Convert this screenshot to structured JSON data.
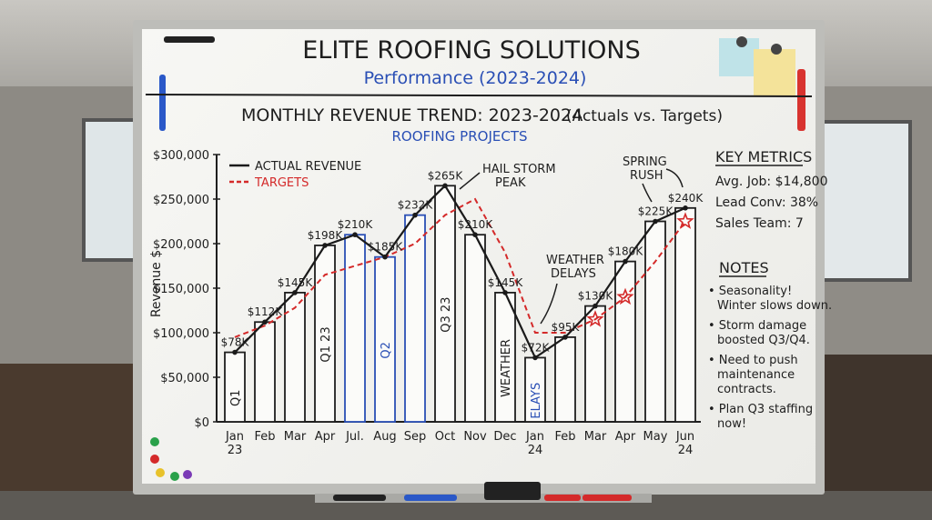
{
  "header": {
    "title": "ELITE ROOFING SOLUTIONS",
    "subtitle": "Performance (2023-2024)"
  },
  "chart_data": {
    "type": "bar",
    "title": "MONTHLY REVENUE TREND: 2023-2024",
    "title_note": "(Actuals vs. Targets)",
    "subtitle": "ROOFING PROJECTS",
    "ylabel": "Revenue $",
    "xlabel": "",
    "ylim": [
      0,
      300000
    ],
    "yticks": [
      "$0",
      "$50,000",
      "$100,000",
      "$150,000",
      "$200,000",
      "$250,000",
      "$300,000"
    ],
    "categories": [
      "Jan 23",
      "Feb",
      "Mar",
      "Apr",
      "Jul.",
      "Aug",
      "Sep",
      "Oct",
      "Nov",
      "Dec",
      "Jan 24",
      "Feb",
      "Mar",
      "Apr",
      "May",
      "Jun 24"
    ],
    "series": [
      {
        "name": "ACTUAL REVENUE",
        "values": [
          78000,
          112000,
          145000,
          198000,
          210000,
          185000,
          232000,
          265000,
          210000,
          145000,
          72000,
          95000,
          130000,
          180000,
          225000,
          240000
        ]
      },
      {
        "name": "TARGETS",
        "values": [
          95000,
          108000,
          128000,
          165000,
          175000,
          185000,
          200000,
          232000,
          250000,
          190000,
          100000,
          100000,
          115000,
          140000,
          180000,
          225000
        ]
      }
    ],
    "data_labels": [
      "$78K",
      "$112K",
      "$145K",
      "$198K",
      "$210K",
      "$185K",
      "$232K",
      "$265K",
      "$210K",
      "$145K",
      "$72K",
      "$95K",
      "$130K",
      "$180K",
      "$225K",
      "$240K"
    ],
    "bar_notes": [
      {
        "index": 0,
        "text": "Q1"
      },
      {
        "index": 3,
        "text": "Q1 23"
      },
      {
        "index": 5,
        "text": "Q2"
      },
      {
        "index": 7,
        "text": "Q3 23"
      },
      {
        "index": 9,
        "text": "WEATHER"
      },
      {
        "index": 10,
        "text": "ELAYS"
      }
    ],
    "highlighted_bars": [
      4,
      5,
      6
    ],
    "star_points": [
      12,
      13,
      15
    ],
    "annotations": [
      "HAIL STORM",
      "PEAK",
      "WEATHER",
      "DELAYS",
      "SPRING",
      "RUSH"
    ],
    "legend_position": "top-left",
    "grid": false,
    "colors": {
      "actual": "#1a1a1a",
      "target": "#d42a2a",
      "highlight": "#2a4fb5",
      "ink": "#1e1e1e"
    }
  },
  "key_metrics": {
    "title": "KEY METRICS",
    "items": [
      "Avg. Job: $14,800",
      "Lead Conv: 38%",
      "Sales Team: 7"
    ]
  },
  "notes": {
    "title": "NOTES",
    "items": [
      [
        "Seasonality!",
        "Winter slows down."
      ],
      [
        "Storm damage",
        "boosted Q3/Q4."
      ],
      [
        "Need to push",
        "maintenance",
        "contracts."
      ],
      [
        "Plan Q3 staffing",
        "now!"
      ]
    ]
  }
}
